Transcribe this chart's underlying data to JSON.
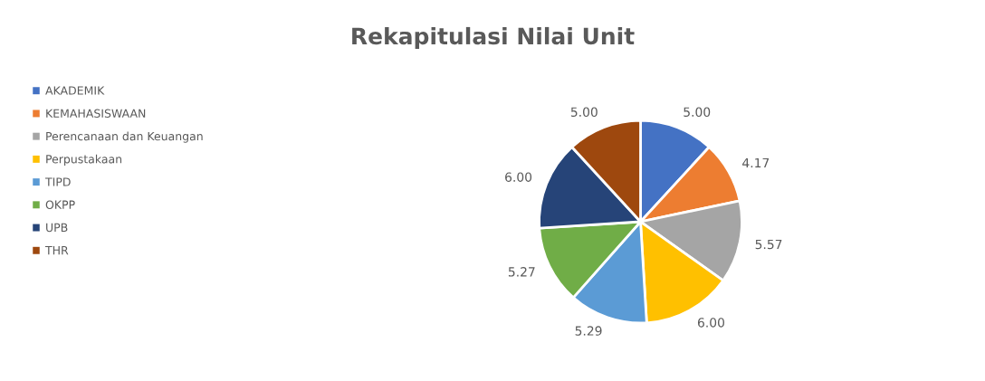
{
  "chart_data": {
    "type": "pie",
    "title": "Rekapitulasi Nilai Unit",
    "categories": [
      "AKADEMIK",
      "KEMAHASISWAAN",
      "Perencanaan dan Keuangan",
      "Perpustakaan",
      "TIPD",
      "OKPP",
      "UPB",
      "THR"
    ],
    "values": [
      5.0,
      4.17,
      5.57,
      6.0,
      5.29,
      5.27,
      6.0,
      5.0
    ],
    "value_labels": [
      "5.00",
      "4.17",
      "5.57",
      "6.00",
      "5.29",
      "5.27",
      "6.00",
      "5.00"
    ],
    "colors": [
      "#4472c4",
      "#ed7d31",
      "#a5a5a5",
      "#ffc000",
      "#5b9bd5",
      "#70ad47",
      "#264478",
      "#9e480e"
    ],
    "legend": "left"
  }
}
